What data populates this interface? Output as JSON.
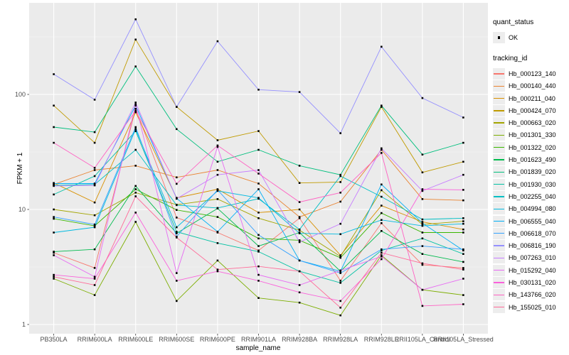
{
  "figure": {
    "background": "#FFFFFF",
    "panel_background": "#EBEBEB",
    "grid_major_color": "#FFFFFF",
    "grid_minor_color": "#F7F7F7",
    "axis_text_color": "#4D4D4D",
    "tick_mark_color": "#333333",
    "point_color": "#000000"
  },
  "axes": {
    "x_title": "sample_name",
    "y_title": "FPKM + 1",
    "y_tick_labels": [
      "1",
      "10",
      "100"
    ],
    "x_tick_labels": [
      "PB350LA",
      "RRIM600LA",
      "RRIM600LE",
      "RRIM600SE",
      "RRIM600PE",
      "RRIM901LA",
      "RRIM928BA",
      "RRIM928LA",
      "RRIM928LE",
      "RRII105LA_Control",
      "RRII105LA_Stressed"
    ]
  },
  "legend": {
    "quant_status": {
      "title": "quant_status",
      "items": [
        {
          "label": "OK",
          "marker": "black-square-point"
        }
      ]
    },
    "tracking_id": {
      "title": "tracking_id"
    }
  },
  "chart_data": {
    "type": "line",
    "title": "",
    "xlabel": "sample_name",
    "ylabel": "FPKM + 1",
    "x_scale": "categorical",
    "y_scale": "log10",
    "ylim": [
      1,
      500
    ],
    "y_major_ticks": [
      1,
      10,
      100
    ],
    "grid": true,
    "legend_position": "right",
    "point_marker": "small-black-square",
    "categories": [
      "PB350LA",
      "RRIM600LA",
      "RRIM600LE",
      "RRIM600SE",
      "RRIM600PE",
      "RRIM901LA",
      "RRIM928BA",
      "RRIM928LA",
      "RRIM928LE",
      "RRII105LA_Control",
      "RRII105LA_Stressed"
    ],
    "quant_status_all": "OK",
    "series": [
      {
        "name": "Hb_000123_140",
        "color": "#F8766D",
        "values": [
          4.2,
          3.1,
          75,
          8.5,
          6.3,
          4.4,
          8.4,
          2.4,
          7.6,
          3.3,
          3.1
        ]
      },
      {
        "name": "Hb_000140_440",
        "color": "#EA8331",
        "values": [
          16.5,
          22,
          24,
          19,
          22,
          16.8,
          8.6,
          11.7,
          33,
          12.3,
          12
        ]
      },
      {
        "name": "Hb_000211_040",
        "color": "#D89000",
        "values": [
          17,
          11.5,
          70,
          12.6,
          15,
          9.4,
          10,
          4.0,
          10.8,
          7.8,
          6.7
        ]
      },
      {
        "name": "Hb_000424_070",
        "color": "#C09B00",
        "values": [
          80,
          38,
          300,
          78,
          40,
          48,
          17,
          17.3,
          78,
          21,
          26
        ]
      },
      {
        "name": "Hb_000663_020",
        "color": "#A3A500",
        "values": [
          10,
          8.9,
          14,
          11,
          12.3,
          8.4,
          6.6,
          3.9,
          14.7,
          7.4,
          7.9
        ]
      },
      {
        "name": "Hb_001301_330",
        "color": "#7CAE00",
        "values": [
          2.5,
          1.8,
          7.8,
          1.6,
          3.6,
          1.7,
          1.55,
          1.2,
          4.0,
          2.0,
          1.8
        ]
      },
      {
        "name": "Hb_001322_020",
        "color": "#39B600",
        "values": [
          8.3,
          7.2,
          15,
          9.9,
          8.6,
          5.6,
          5.4,
          3.8,
          9.3,
          6.3,
          6.3
        ]
      },
      {
        "name": "Hb_001623_490",
        "color": "#00BB4E",
        "values": [
          4.3,
          4.5,
          16,
          6.2,
          10.2,
          4.8,
          6.3,
          2.9,
          6.5,
          4.1,
          3.5
        ]
      },
      {
        "name": "Hb_001839_020",
        "color": "#00BF7D",
        "values": [
          52,
          47,
          175,
          50,
          26,
          33,
          24,
          20,
          80,
          30,
          38
        ]
      },
      {
        "name": "Hb_001930_030",
        "color": "#00C1A3",
        "values": [
          13.5,
          19.5,
          48,
          6.4,
          5.1,
          4.3,
          2.9,
          2.3,
          4.4,
          5.6,
          4.1
        ]
      },
      {
        "name": "Hb_002255_040",
        "color": "#00BFC4",
        "values": [
          16.2,
          16.5,
          33,
          10.9,
          10.3,
          12.4,
          6.7,
          19.5,
          12.9,
          8.2,
          8.4
        ]
      },
      {
        "name": "Hb_004994_080",
        "color": "#00BAE0",
        "values": [
          6.3,
          7.0,
          50,
          7.0,
          14.5,
          12.6,
          6.2,
          6.1,
          8.1,
          7.2,
          7.5
        ]
      },
      {
        "name": "Hb_006555_040",
        "color": "#00B0F6",
        "values": [
          16.8,
          16.8,
          80,
          12.5,
          6.4,
          15,
          3.6,
          2.9,
          16.5,
          7.6,
          4.4
        ]
      },
      {
        "name": "Hb_006618_070",
        "color": "#35A2FF",
        "values": [
          8.6,
          7.4,
          52,
          5.8,
          14.8,
          6.0,
          3.6,
          2.8,
          4.5,
          4.8,
          4.5
        ]
      },
      {
        "name": "Hb_006816_190",
        "color": "#9590FF",
        "values": [
          150,
          90,
          450,
          78,
          290,
          110,
          105,
          46,
          260,
          93,
          63
        ]
      },
      {
        "name": "Hb_007263_010",
        "color": "#C77CFF",
        "values": [
          16.0,
          16.2,
          85,
          12.4,
          20,
          22,
          5.2,
          7.5,
          34,
          14.5,
          20
        ]
      },
      {
        "name": "Hb_015292_040",
        "color": "#E76BF3",
        "values": [
          4.0,
          2.6,
          82,
          2.8,
          35,
          2.7,
          2.2,
          2.95,
          3.9,
          2.0,
          2.5
        ]
      },
      {
        "name": "Hb_030131_020",
        "color": "#FA62DB",
        "values": [
          2.7,
          2.5,
          9.4,
          2.4,
          2.9,
          2.4,
          1.9,
          1.6,
          3.7,
          15,
          14.8
        ]
      },
      {
        "name": "Hb_143766_020",
        "color": "#FF61C3",
        "values": [
          38,
          23,
          72,
          16.7,
          36,
          20.5,
          11.6,
          14,
          31,
          1.45,
          1.5
        ]
      },
      {
        "name": "Hb_155025_010",
        "color": "#FF6A98",
        "values": [
          2.6,
          2.2,
          13,
          5.7,
          3.0,
          3.2,
          2.9,
          1.4,
          4.2,
          3.4,
          3.0
        ]
      }
    ]
  }
}
